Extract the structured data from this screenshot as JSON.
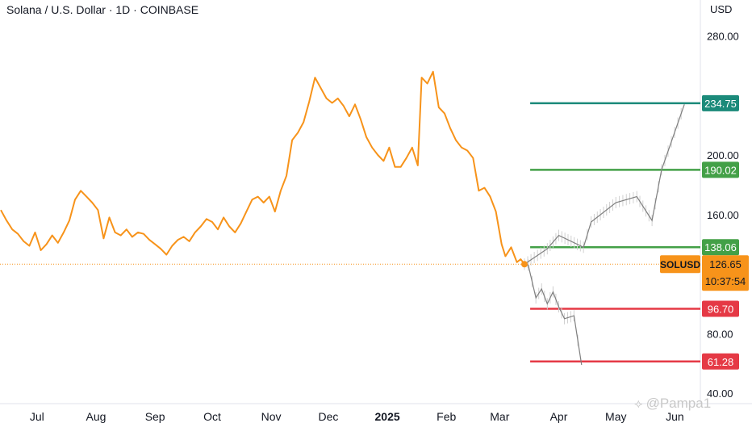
{
  "header": {
    "title": "Solana / U.S. Dollar · 1D · COINBASE",
    "currency": "USD"
  },
  "watermark": "@Pampa1",
  "symbol_label": "SOLUSD",
  "colors": {
    "price_line": "#f7931a",
    "projection": "#7f7f7f",
    "teal": "#1b8a7a",
    "green": "#43a047",
    "red": "#e53945",
    "current_price_badge": "#f7931a"
  },
  "chart_data": {
    "type": "line",
    "title": "Solana / U.S. Dollar · 1D · COINBASE",
    "xlabel": "",
    "ylabel": "",
    "y_axis_unit": "USD",
    "ylim": [
      40,
      280
    ],
    "y_ticks": [
      "280.00",
      "200.00",
      "160.00",
      "80.00",
      "40.00"
    ],
    "x_ticks": [
      "Jul",
      "Aug",
      "Sep",
      "Oct",
      "Nov",
      "Dec",
      "2025",
      "Feb",
      "Mar",
      "Apr",
      "May",
      "Jun"
    ],
    "x_range": [
      "2024-06-12",
      "2025-06-09"
    ],
    "series": [
      {
        "name": "SOLUSD",
        "x": [
          "2024-06-12",
          "2024-06-15",
          "2024-06-18",
          "2024-06-21",
          "2024-06-24",
          "2024-06-27",
          "2024-06-30",
          "2024-07-03",
          "2024-07-06",
          "2024-07-09",
          "2024-07-12",
          "2024-07-15",
          "2024-07-18",
          "2024-07-21",
          "2024-07-24",
          "2024-07-27",
          "2024-07-30",
          "2024-08-02",
          "2024-08-05",
          "2024-08-08",
          "2024-08-11",
          "2024-08-14",
          "2024-08-17",
          "2024-08-20",
          "2024-08-23",
          "2024-08-26",
          "2024-08-29",
          "2024-09-01",
          "2024-09-04",
          "2024-09-07",
          "2024-09-10",
          "2024-09-13",
          "2024-09-16",
          "2024-09-19",
          "2024-09-22",
          "2024-09-25",
          "2024-09-28",
          "2024-10-01",
          "2024-10-04",
          "2024-10-07",
          "2024-10-10",
          "2024-10-13",
          "2024-10-16",
          "2024-10-19",
          "2024-10-22",
          "2024-10-25",
          "2024-10-28",
          "2024-10-31",
          "2024-11-03",
          "2024-11-06",
          "2024-11-09",
          "2024-11-12",
          "2024-11-15",
          "2024-11-18",
          "2024-11-21",
          "2024-11-24",
          "2024-11-27",
          "2024-11-30",
          "2024-12-03",
          "2024-12-06",
          "2024-12-09",
          "2024-12-12",
          "2024-12-15",
          "2024-12-18",
          "2024-12-21",
          "2024-12-24",
          "2024-12-27",
          "2024-12-30",
          "2025-01-02",
          "2025-01-05",
          "2025-01-08",
          "2025-01-11",
          "2025-01-14",
          "2025-01-17",
          "2025-01-19",
          "2025-01-22",
          "2025-01-25",
          "2025-01-28",
          "2025-01-31",
          "2025-02-03",
          "2025-02-06",
          "2025-02-09",
          "2025-02-12",
          "2025-02-15",
          "2025-02-18",
          "2025-02-21",
          "2025-02-24",
          "2025-02-27",
          "2025-03-02",
          "2025-03-04",
          "2025-03-07",
          "2025-03-10",
          "2025-03-12",
          "2025-03-14"
        ],
        "values": [
          163,
          156,
          150,
          147,
          142,
          139,
          148,
          136,
          140,
          146,
          141,
          148,
          156,
          170,
          176,
          172,
          168,
          163,
          144,
          158,
          148,
          146,
          150,
          145,
          148,
          147,
          143,
          140,
          137,
          133,
          139,
          143,
          145,
          142,
          148,
          152,
          157,
          155,
          150,
          158,
          152,
          148,
          154,
          162,
          170,
          172,
          168,
          172,
          162,
          176,
          186,
          210,
          215,
          222,
          236,
          252,
          245,
          238,
          235,
          238,
          233,
          226,
          234,
          224,
          212,
          205,
          200,
          196,
          205,
          192,
          192,
          198,
          205,
          193,
          252,
          248,
          256,
          232,
          228,
          218,
          210,
          205,
          203,
          198,
          176,
          178,
          172,
          162,
          140,
          132,
          138,
          128,
          130,
          126.65
        ]
      },
      {
        "name": "bullish-projection",
        "x": [
          "2025-03-14",
          "2025-03-26",
          "2025-04-01",
          "2025-04-14",
          "2025-04-18",
          "2025-05-01",
          "2025-05-12",
          "2025-05-20",
          "2025-05-25",
          "2025-06-06"
        ],
        "values": [
          126.65,
          137,
          146,
          138,
          155,
          168,
          172,
          156,
          190,
          234
        ]
      },
      {
        "name": "bearish-projection",
        "x": [
          "2025-03-14",
          "2025-03-16",
          "2025-03-20",
          "2025-03-23",
          "2025-03-26",
          "2025-03-29",
          "2025-04-01",
          "2025-04-04",
          "2025-04-09",
          "2025-04-13"
        ],
        "values": [
          126.65,
          126,
          104,
          110,
          100,
          108,
          98,
          90,
          92,
          59
        ]
      }
    ],
    "levels": [
      {
        "value": 234.75,
        "label": "234.75",
        "color": "#1b8a7a"
      },
      {
        "value": 190.02,
        "label": "190.02",
        "color": "#43a047"
      },
      {
        "value": 138.06,
        "label": "138.06",
        "color": "#43a047"
      },
      {
        "value": 96.7,
        "label": "96.70",
        "color": "#e53945"
      },
      {
        "value": 61.28,
        "label": "61.28",
        "color": "#e53945"
      }
    ],
    "current_price": {
      "value": 126.65,
      "label": "126.65",
      "countdown": "10:37:54"
    }
  }
}
